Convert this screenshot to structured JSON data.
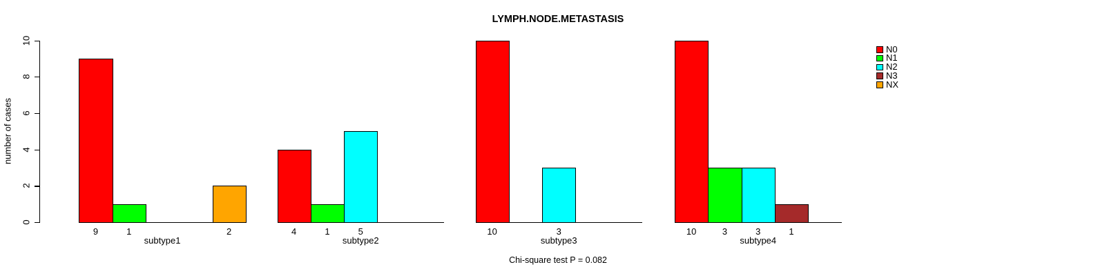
{
  "chart_data": {
    "type": "bar",
    "title": "LYMPH.NODE.METASTASIS",
    "ylabel": "number of cases",
    "xlabel": "",
    "ylim": [
      0,
      10
    ],
    "yticks": [
      0,
      2,
      4,
      6,
      8,
      10
    ],
    "grid": false,
    "legend_position": "right-outside",
    "categories": [
      "subtype1",
      "subtype2",
      "subtype3",
      "subtype4"
    ],
    "series": [
      {
        "name": "N0",
        "color": "#FF0000",
        "values": [
          9,
          4,
          10,
          10
        ]
      },
      {
        "name": "N1",
        "color": "#00FF00",
        "values": [
          1,
          1,
          0,
          3
        ]
      },
      {
        "name": "N2",
        "color": "#00FFFF",
        "values": [
          0,
          5,
          3,
          3
        ]
      },
      {
        "name": "N3",
        "color": "#A52A2A",
        "values": [
          0,
          0,
          0,
          1
        ]
      },
      {
        "name": "NX",
        "color": "#FFA500",
        "values": [
          2,
          0,
          0,
          0
        ]
      }
    ],
    "bar_value_labels": "value shown below each non-zero bar",
    "annotation": "Chi-square test P = 0.082",
    "axis_color": "#000000",
    "background_color": "#FFFFFF"
  }
}
